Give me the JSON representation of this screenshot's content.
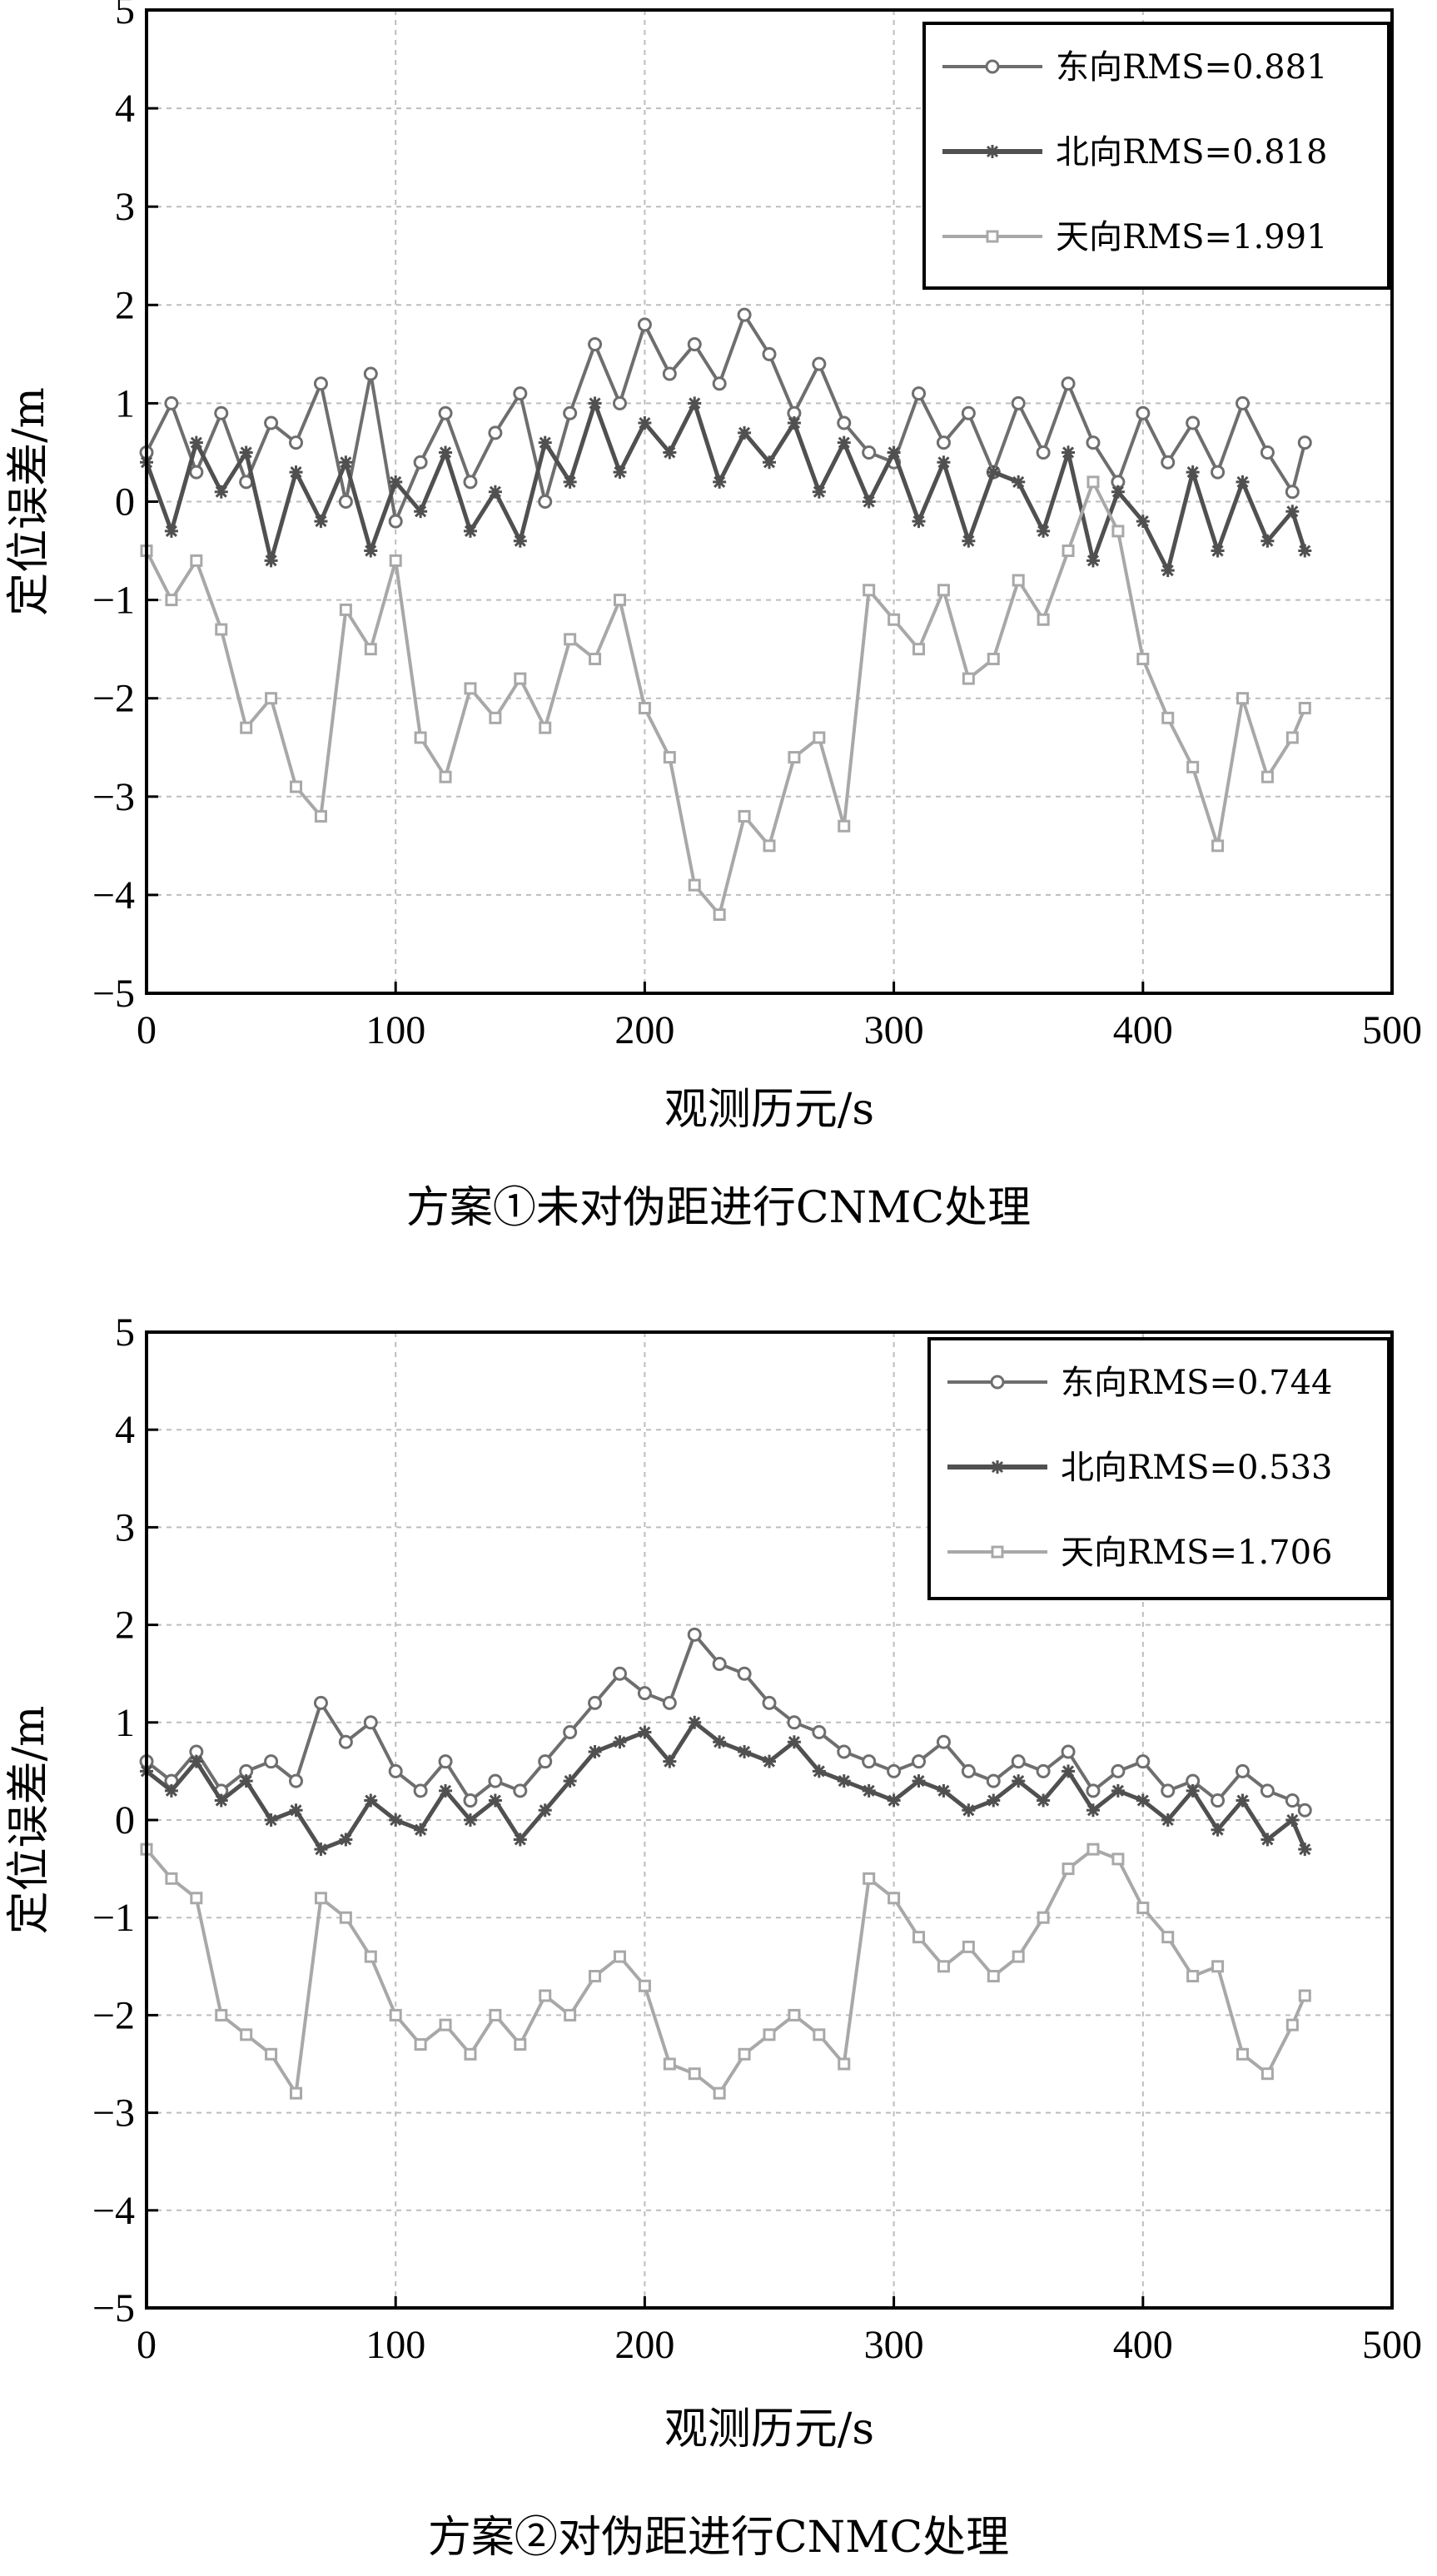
{
  "chart_data": [
    {
      "type": "line",
      "title": "",
      "caption": "方案①未对伪距进行CNMC处理",
      "xlabel": "观测历元/s",
      "ylabel": "定位误差/m",
      "xlim": [
        0,
        500
      ],
      "ylim": [
        -5,
        5
      ],
      "xticks": [
        0,
        100,
        200,
        300,
        400,
        500
      ],
      "yticks": [
        5,
        4,
        3,
        2,
        1,
        0,
        -1,
        -2,
        -3,
        -4,
        -5
      ],
      "ytick_labels": [
        "5",
        "4",
        "3",
        "2",
        "1",
        "0",
        "−1",
        "−2",
        "−3",
        "−4",
        "−5"
      ],
      "grid": true,
      "legend_position": "top-right",
      "x": [
        0,
        10,
        20,
        30,
        40,
        50,
        60,
        70,
        80,
        90,
        100,
        110,
        120,
        130,
        140,
        150,
        160,
        170,
        180,
        190,
        200,
        210,
        220,
        230,
        240,
        250,
        260,
        270,
        280,
        290,
        300,
        310,
        320,
        330,
        340,
        350,
        360,
        370,
        380,
        390,
        400,
        410,
        420,
        430,
        440,
        450,
        460,
        465
      ],
      "series": [
        {
          "name": "东向RMS=0.881",
          "marker": "circle",
          "color": "#6e6e6e",
          "values": [
            0.5,
            1.0,
            0.3,
            0.9,
            0.2,
            0.8,
            0.6,
            1.2,
            0.0,
            1.3,
            -0.2,
            0.4,
            0.9,
            0.2,
            0.7,
            1.1,
            0.0,
            0.9,
            1.6,
            1.0,
            1.8,
            1.3,
            1.6,
            1.2,
            1.9,
            1.5,
            0.9,
            1.4,
            0.8,
            0.5,
            0.4,
            1.1,
            0.6,
            0.9,
            0.3,
            1.0,
            0.5,
            1.2,
            0.6,
            0.2,
            0.9,
            0.4,
            0.8,
            0.3,
            1.0,
            0.5,
            0.1,
            0.6
          ]
        },
        {
          "name": "北向RMS=0.818",
          "marker": "star",
          "color": "#505050",
          "values": [
            0.4,
            -0.3,
            0.6,
            0.1,
            0.5,
            -0.6,
            0.3,
            -0.2,
            0.4,
            -0.5,
            0.2,
            -0.1,
            0.5,
            -0.3,
            0.1,
            -0.4,
            0.6,
            0.2,
            1.0,
            0.3,
            0.8,
            0.5,
            1.0,
            0.2,
            0.7,
            0.4,
            0.8,
            0.1,
            0.6,
            0.0,
            0.5,
            -0.2,
            0.4,
            -0.4,
            0.3,
            0.2,
            -0.3,
            0.5,
            -0.6,
            0.1,
            -0.2,
            -0.7,
            0.3,
            -0.5,
            0.2,
            -0.4,
            -0.1,
            -0.5
          ]
        },
        {
          "name": "天向RMS=1.991",
          "marker": "square",
          "color": "#a8a8a8",
          "values": [
            -0.5,
            -1.0,
            -0.6,
            -1.3,
            -2.3,
            -2.0,
            -2.9,
            -3.2,
            -1.1,
            -1.5,
            -0.6,
            -2.4,
            -2.8,
            -1.9,
            -2.2,
            -1.8,
            -2.3,
            -1.4,
            -1.6,
            -1.0,
            -2.1,
            -2.6,
            -3.9,
            -4.2,
            -3.2,
            -3.5,
            -2.6,
            -2.4,
            -3.3,
            -0.9,
            -1.2,
            -1.5,
            -0.9,
            -1.8,
            -1.6,
            -0.8,
            -1.2,
            -0.5,
            0.2,
            -0.3,
            -1.6,
            -2.2,
            -2.7,
            -3.5,
            -2.0,
            -2.8,
            -2.4,
            -2.1
          ]
        }
      ]
    },
    {
      "type": "line",
      "title": "",
      "caption": "方案②对伪距进行CNMC处理",
      "xlabel": "观测历元/s",
      "ylabel": "定位误差/m",
      "xlim": [
        0,
        500
      ],
      "ylim": [
        -5,
        5
      ],
      "xticks": [
        0,
        100,
        200,
        300,
        400,
        500
      ],
      "yticks": [
        5,
        4,
        3,
        2,
        1,
        0,
        -1,
        -2,
        -3,
        -4,
        -5
      ],
      "ytick_labels": [
        "5",
        "4",
        "3",
        "2",
        "1",
        "0",
        "−1",
        "−2",
        "−3",
        "−4",
        "−5"
      ],
      "grid": true,
      "legend_position": "top-right",
      "x": [
        0,
        10,
        20,
        30,
        40,
        50,
        60,
        70,
        80,
        90,
        100,
        110,
        120,
        130,
        140,
        150,
        160,
        170,
        180,
        190,
        200,
        210,
        220,
        230,
        240,
        250,
        260,
        270,
        280,
        290,
        300,
        310,
        320,
        330,
        340,
        350,
        360,
        370,
        380,
        390,
        400,
        410,
        420,
        430,
        440,
        450,
        460,
        465
      ],
      "series": [
        {
          "name": "东向RMS=0.744",
          "marker": "circle",
          "color": "#6e6e6e",
          "values": [
            0.6,
            0.4,
            0.7,
            0.3,
            0.5,
            0.6,
            0.4,
            1.2,
            0.8,
            1.0,
            0.5,
            0.3,
            0.6,
            0.2,
            0.4,
            0.3,
            0.6,
            0.9,
            1.2,
            1.5,
            1.3,
            1.2,
            1.9,
            1.6,
            1.5,
            1.2,
            1.0,
            0.9,
            0.7,
            0.6,
            0.5,
            0.6,
            0.8,
            0.5,
            0.4,
            0.6,
            0.5,
            0.7,
            0.3,
            0.5,
            0.6,
            0.3,
            0.4,
            0.2,
            0.5,
            0.3,
            0.2,
            0.1
          ]
        },
        {
          "name": "北向RMS=0.533",
          "marker": "star",
          "color": "#505050",
          "values": [
            0.5,
            0.3,
            0.6,
            0.2,
            0.4,
            0.0,
            0.1,
            -0.3,
            -0.2,
            0.2,
            0.0,
            -0.1,
            0.3,
            0.0,
            0.2,
            -0.2,
            0.1,
            0.4,
            0.7,
            0.8,
            0.9,
            0.6,
            1.0,
            0.8,
            0.7,
            0.6,
            0.8,
            0.5,
            0.4,
            0.3,
            0.2,
            0.4,
            0.3,
            0.1,
            0.2,
            0.4,
            0.2,
            0.5,
            0.1,
            0.3,
            0.2,
            0.0,
            0.3,
            -0.1,
            0.2,
            -0.2,
            0.0,
            -0.3
          ]
        },
        {
          "name": "天向RMS=1.706",
          "marker": "square",
          "color": "#a8a8a8",
          "values": [
            -0.3,
            -0.6,
            -0.8,
            -2.0,
            -2.2,
            -2.4,
            -2.8,
            -0.8,
            -1.0,
            -1.4,
            -2.0,
            -2.3,
            -2.1,
            -2.4,
            -2.0,
            -2.3,
            -1.8,
            -2.0,
            -1.6,
            -1.4,
            -1.7,
            -2.5,
            -2.6,
            -2.8,
            -2.4,
            -2.2,
            -2.0,
            -2.2,
            -2.5,
            -0.6,
            -0.8,
            -1.2,
            -1.5,
            -1.3,
            -1.6,
            -1.4,
            -1.0,
            -0.5,
            -0.3,
            -0.4,
            -0.9,
            -1.2,
            -1.6,
            -1.5,
            -2.4,
            -2.6,
            -2.1,
            -1.8
          ]
        }
      ]
    }
  ]
}
